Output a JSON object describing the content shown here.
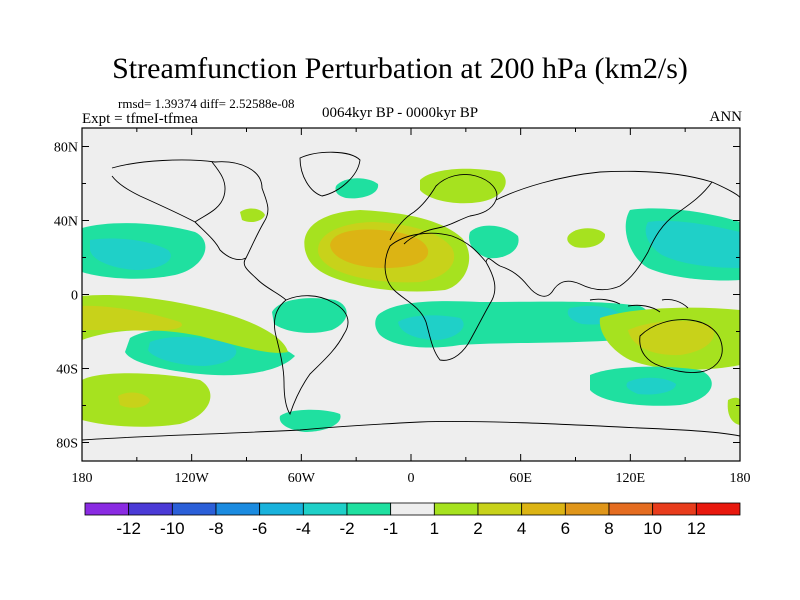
{
  "title": "Streamfunction Perturbation at 200 hPa (km2/s)",
  "stats": "rmsd= 1.39374 diff= 2.52588e-08",
  "experiment": "Expt = tfmeI-tfmea",
  "period": "0064kyr BP - 0000kyr BP",
  "season": "ANN",
  "axes": {
    "lat_labels": [
      "80N",
      "40N",
      "0",
      "40S",
      "80S"
    ],
    "lat_values": [
      80,
      40,
      0,
      -40,
      -80
    ],
    "lon_labels": [
      "180",
      "120W",
      "60W",
      "0",
      "60E",
      "120E",
      "180"
    ],
    "lon_values": [
      -180,
      -120,
      -60,
      0,
      60,
      120,
      180
    ],
    "lon_range": [
      -180,
      180
    ],
    "lat_range": [
      -90,
      90
    ]
  },
  "colorbar": {
    "labels": [
      "-12",
      "-10",
      "-8",
      "-6",
      "-4",
      "-2",
      "-1",
      "1",
      "2",
      "4",
      "6",
      "8",
      "10",
      "12"
    ],
    "colors": [
      "#8a2be2",
      "#4b3ad6",
      "#2b5fd8",
      "#1b8be0",
      "#19b2dc",
      "#1fd0c8",
      "#1fe0a0",
      "#eeeeee",
      "#a6e21f",
      "#c8d21a",
      "#dcb414",
      "#e0961a",
      "#e46c20",
      "#e83c1c",
      "#e8180e"
    ]
  }
}
